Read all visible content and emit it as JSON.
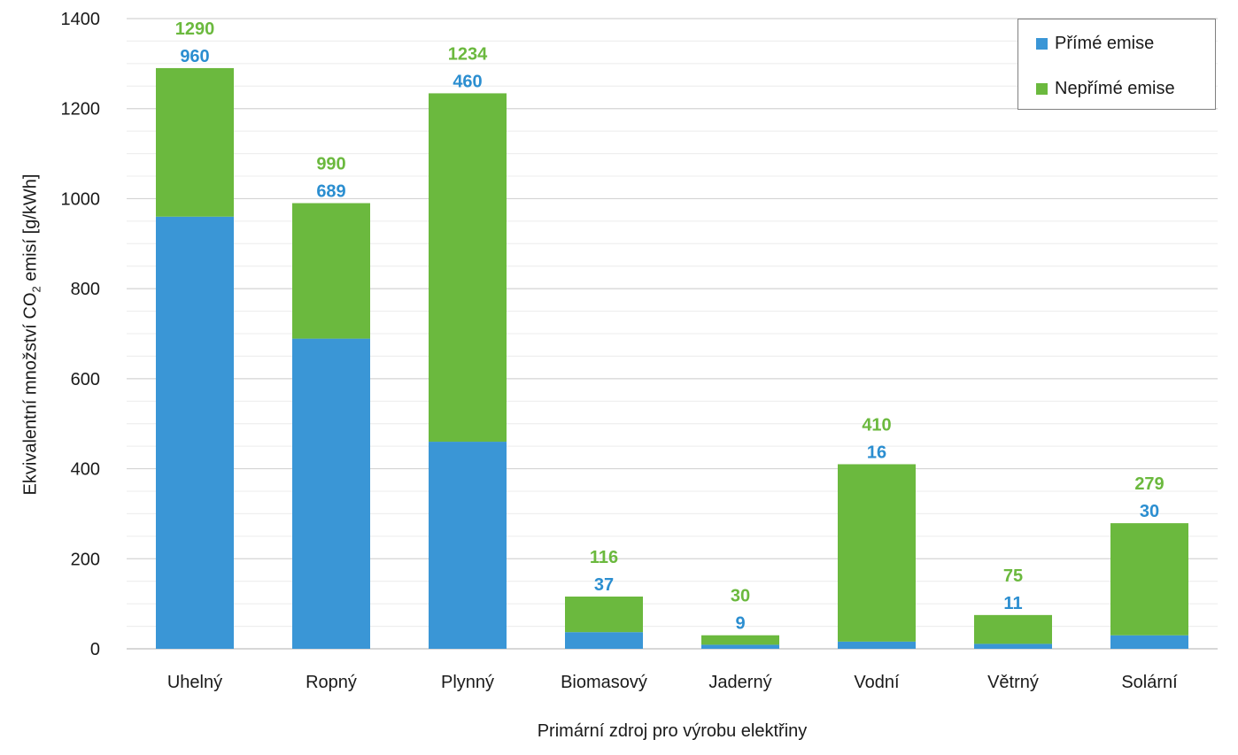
{
  "chart_data": {
    "type": "bar",
    "stacked": true,
    "xlabel": "Primární zdroj pro výrobu elektřiny",
    "ylabel_main": "Ekvivalentní množství CO",
    "ylabel_sub": "2",
    "ylabel_tail": " emisí [g/kWh]",
    "ylim": [
      0,
      1400
    ],
    "yticks": [
      0,
      200,
      400,
      600,
      800,
      1000,
      1200,
      1400
    ],
    "grid": true,
    "legend_position": "top-right",
    "categories": [
      "Uhelný",
      "Ropný",
      "Plynný",
      "Biomasový",
      "Jaderný",
      "Vodní",
      "Větrný",
      "Solární"
    ],
    "series": [
      {
        "name": "Přímé emise",
        "color": "#3a96d6",
        "values": [
          960,
          689,
          460,
          37,
          9,
          16,
          11,
          30
        ]
      },
      {
        "name": "Nepřímé emise",
        "color": "#6bb93e",
        "values": [
          330,
          301,
          774,
          79,
          21,
          394,
          64,
          249
        ]
      }
    ],
    "labels_direct": [
      "960",
      "689",
      "460",
      "37",
      "9",
      "16",
      "11",
      "30"
    ],
    "labels_total": [
      "1290",
      "990",
      "1234",
      "116",
      "30",
      "410",
      "75",
      "279"
    ],
    "direct_label_color": "#2b8ed0",
    "total_label_color": "#6bb93e"
  }
}
